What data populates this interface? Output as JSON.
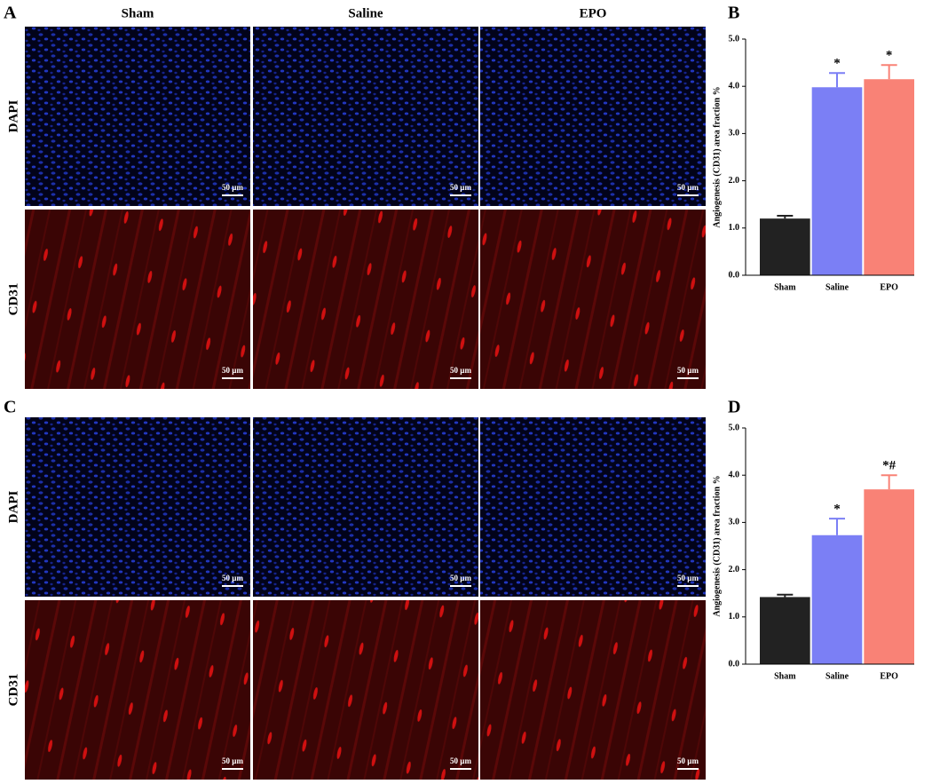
{
  "figure": {
    "panel_labels": [
      "A",
      "B",
      "C",
      "D"
    ],
    "columns": [
      "Sham",
      "Saline",
      "EPO"
    ],
    "rows": [
      "DAPI",
      "CD31"
    ],
    "scale_bar": "50 µm"
  },
  "chart_data": [
    {
      "type": "bar",
      "y_label": "Angiogenesis (CD31) area fraction %",
      "categories": [
        "Sham",
        "Saline",
        "EPO"
      ],
      "values": [
        1.2,
        3.98,
        4.15
      ],
      "errors": [
        0.06,
        0.3,
        0.3
      ],
      "annotations": [
        null,
        "*",
        "*"
      ],
      "colors": [
        "#222222",
        "#7b7ff5",
        "#f98276"
      ],
      "ylim": [
        0,
        5
      ],
      "yticks": [
        {
          "value": 0,
          "label": "0.0"
        },
        {
          "value": 1,
          "label": "1.0"
        },
        {
          "value": 2,
          "label": "2.0"
        },
        {
          "value": 3,
          "label": "3.0"
        },
        {
          "value": 4,
          "label": "4.0"
        },
        {
          "value": 5,
          "label": "5.0"
        }
      ]
    },
    {
      "type": "bar",
      "y_label": "Angiogenesis (CD31) area fraction %",
      "categories": [
        "Sham",
        "Saline",
        "EPO"
      ],
      "values": [
        1.42,
        2.73,
        3.7
      ],
      "errors": [
        0.05,
        0.35,
        0.3
      ],
      "annotations": [
        null,
        "*",
        "*#"
      ],
      "colors": [
        "#222222",
        "#7b7ff5",
        "#f98276"
      ],
      "ylim": [
        0,
        5
      ],
      "yticks": [
        {
          "value": 0,
          "label": "0.0"
        },
        {
          "value": 1,
          "label": "1.0"
        },
        {
          "value": 2,
          "label": "2.0"
        },
        {
          "value": 3,
          "label": "3.0"
        },
        {
          "value": 4,
          "label": "4.0"
        },
        {
          "value": 5,
          "label": "5.0"
        }
      ]
    }
  ]
}
